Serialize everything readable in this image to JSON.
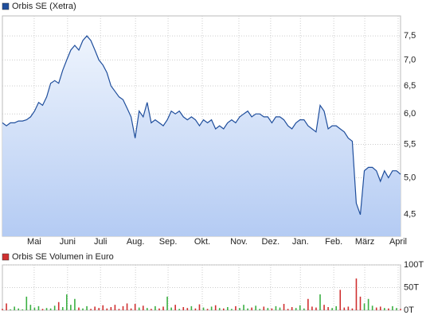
{
  "chart_data": [
    {
      "type": "area",
      "log_scale": true,
      "grid": true,
      "series": [
        {
          "name": "Orbis SE (Xetra)",
          "color": "#1f4e9c",
          "values": [
            5.85,
            5.8,
            5.85,
            5.85,
            5.88,
            5.88,
            5.9,
            5.95,
            6.05,
            6.2,
            6.15,
            6.3,
            6.55,
            6.6,
            6.55,
            6.8,
            7.0,
            7.2,
            7.3,
            7.2,
            7.4,
            7.5,
            7.4,
            7.2,
            7.0,
            6.9,
            6.75,
            6.5,
            6.4,
            6.3,
            6.25,
            6.1,
            5.95,
            5.6,
            6.05,
            5.95,
            6.2,
            5.85,
            5.9,
            5.85,
            5.8,
            5.9,
            6.05,
            6.0,
            6.05,
            5.95,
            5.9,
            5.95,
            5.9,
            5.8,
            5.9,
            5.85,
            5.9,
            5.75,
            5.8,
            5.75,
            5.85,
            5.9,
            5.85,
            5.95,
            6.0,
            6.05,
            5.95,
            6.0,
            6.0,
            5.95,
            5.95,
            5.85,
            5.95,
            5.95,
            5.9,
            5.8,
            5.75,
            5.85,
            5.9,
            5.9,
            5.8,
            5.75,
            5.7,
            6.15,
            6.05,
            5.75,
            5.8,
            5.8,
            5.75,
            5.7,
            5.6,
            5.55,
            4.65,
            4.5,
            5.1,
            5.15,
            5.15,
            5.1,
            4.95,
            5.1,
            5.0,
            5.1,
            5.1,
            5.05
          ]
        }
      ],
      "xlim": [
        0,
        99
      ],
      "xticks": [
        {
          "value": 7.9,
          "label": "Mai"
        },
        {
          "value": 16.2,
          "label": "Juni"
        },
        {
          "value": 24.4,
          "label": "Juli"
        },
        {
          "value": 33.1,
          "label": "Aug."
        },
        {
          "value": 41.2,
          "label": "Sep."
        },
        {
          "value": 49.7,
          "label": "Okt."
        },
        {
          "value": 58.8,
          "label": "Nov."
        },
        {
          "value": 66.7,
          "label": "Dez."
        },
        {
          "value": 74.1,
          "label": "Jan."
        },
        {
          "value": 82.4,
          "label": "Feb."
        },
        {
          "value": 90.1,
          "label": "März"
        },
        {
          "value": 98.4,
          "label": "April"
        }
      ],
      "ylim": [
        4.23,
        7.94
      ],
      "yticks": [
        {
          "value": 4.5,
          "label": "4,5"
        },
        {
          "value": 5.0,
          "label": "5,0"
        },
        {
          "value": 5.5,
          "label": "5,5"
        },
        {
          "value": 6.0,
          "label": "6,0"
        },
        {
          "value": 6.5,
          "label": "6,5"
        },
        {
          "value": 7.0,
          "label": "7,0"
        },
        {
          "value": 7.5,
          "label": "7,5"
        }
      ]
    },
    {
      "type": "bar",
      "grid": true,
      "up_color": "#3cb043",
      "down_color": "#d03030",
      "series": [
        {
          "name": "Orbis SE Volumen in Euro",
          "color": "#d03030",
          "values": [
            3000,
            15000,
            2000,
            8000,
            4000,
            2000,
            30000,
            12000,
            6000,
            9000,
            3000,
            5000,
            4000,
            10000,
            18000,
            7000,
            35000,
            12000,
            25000,
            6000,
            4000,
            9000,
            3000,
            8000,
            5000,
            11000,
            4000,
            7000,
            12000,
            3000,
            9000,
            15000,
            4000,
            14000,
            6000,
            10000,
            5000,
            3000,
            9000,
            4000,
            8000,
            30000,
            6000,
            12000,
            3000,
            7000,
            5000,
            9000,
            4000,
            13000,
            6000,
            3000,
            8000,
            11000,
            5000,
            4000,
            7000,
            3000,
            9000,
            5000,
            12000,
            4000,
            6000,
            10000,
            3000,
            8000,
            5000,
            4000,
            9000,
            6000,
            14000,
            3000,
            7000,
            5000,
            11000,
            4000,
            25000,
            8000,
            6000,
            35000,
            12000,
            7000,
            5000,
            9000,
            45000,
            6000,
            8000,
            4000,
            70000,
            30000,
            15000,
            25000,
            10000,
            6000,
            8000,
            5000,
            4000,
            9000,
            5000,
            3000
          ]
        }
      ],
      "xlim": [
        0,
        99
      ],
      "ylim": [
        0,
        100000
      ],
      "yticks": [
        {
          "value": 0,
          "label": "0T"
        },
        {
          "value": 50000,
          "label": "50T"
        },
        {
          "value": 100000,
          "label": "100T"
        }
      ]
    }
  ]
}
